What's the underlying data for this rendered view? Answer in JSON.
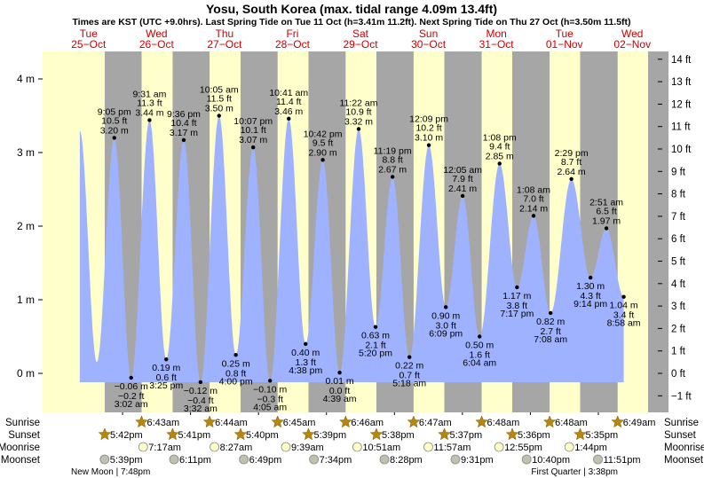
{
  "chart_data": {
    "type": "area",
    "title": "Yosu, South Korea (max. tidal range 4.09m 13.4ft)",
    "subtitle": "Times are KST (UTC +9.0hrs). Last Spring Tide on Tue 11 Oct (h=3.41m 11.2ft). Next Spring Tide on Thu 27 Oct (h=3.50m 11.5ft)",
    "ylabel_left": "m",
    "ylabel_right": "ft",
    "ylim_m": [
      -0.45,
      4.4
    ],
    "left_ticks": [
      "0 m",
      "1 m",
      "2 m",
      "3 m",
      "4 m"
    ],
    "right_ticks": [
      "−1 ft",
      "0 ft",
      "1 ft",
      "2 ft",
      "3 ft",
      "4 ft",
      "5 ft",
      "6 ft",
      "7 ft",
      "8 ft",
      "9 ft",
      "10 ft",
      "11 ft",
      "12 ft",
      "13 ft",
      "14 ft"
    ],
    "days": [
      {
        "dow": "Tue",
        "date": "25−Oct"
      },
      {
        "dow": "Wed",
        "date": "26−Oct"
      },
      {
        "dow": "Thu",
        "date": "27−Oct"
      },
      {
        "dow": "Fri",
        "date": "28−Oct"
      },
      {
        "dow": "Sat",
        "date": "29−Oct"
      },
      {
        "dow": "Sun",
        "date": "30−Oct"
      },
      {
        "dow": "Mon",
        "date": "31−Oct"
      },
      {
        "dow": "Tue",
        "date": "01−Nov"
      },
      {
        "dow": "Wed",
        "date": "02−Nov"
      }
    ],
    "curve_start": [
      {
        "t": 8.9,
        "m": 3.3
      },
      {
        "t": 14.9,
        "m": 0.15
      }
    ],
    "tides": [
      {
        "t": 21.08,
        "type": "high",
        "time": "9:05 pm",
        "ft": "10.5 ft",
        "m": 3.2,
        "m_label": "3.20 m"
      },
      {
        "t": 27.03,
        "type": "low",
        "time": "3:02 am",
        "ft": "−0.2 ft",
        "m": -0.06,
        "m_label": "−0.06 m"
      },
      {
        "t": 33.52,
        "type": "high",
        "time": "9:31 am",
        "ft": "11.3 ft",
        "m": 3.44,
        "m_label": "3.44 m"
      },
      {
        "t": 39.42,
        "type": "low",
        "time": "3:25 pm",
        "ft": "0.6 ft",
        "m": 0.19,
        "m_label": "0.19 m"
      },
      {
        "t": 45.6,
        "type": "high",
        "time": "9:36 pm",
        "ft": "10.4 ft",
        "m": 3.17,
        "m_label": "3.17 m"
      },
      {
        "t": 51.53,
        "type": "low",
        "time": "3:32 am",
        "ft": "−0.4 ft",
        "m": -0.12,
        "m_label": "−0.12 m"
      },
      {
        "t": 58.08,
        "type": "high",
        "time": "10:05 am",
        "ft": "11.5 ft",
        "m": 3.5,
        "m_label": "3.50 m"
      },
      {
        "t": 64.0,
        "type": "low",
        "time": "4:00 pm",
        "ft": "0.8 ft",
        "m": 0.25,
        "m_label": "0.25 m"
      },
      {
        "t": 70.12,
        "type": "high",
        "time": "10:07 pm",
        "ft": "10.1 ft",
        "m": 3.07,
        "m_label": "3.07 m"
      },
      {
        "t": 76.08,
        "type": "low",
        "time": "4:05 am",
        "ft": "−0.3 ft",
        "m": -0.1,
        "m_label": "−0.10 m"
      },
      {
        "t": 82.68,
        "type": "high",
        "time": "10:41 am",
        "ft": "11.4 ft",
        "m": 3.46,
        "m_label": "3.46 m"
      },
      {
        "t": 88.63,
        "type": "low",
        "time": "4:38 pm",
        "ft": "1.3 ft",
        "m": 0.4,
        "m_label": "0.40 m"
      },
      {
        "t": 94.7,
        "type": "high",
        "time": "10:42 pm",
        "ft": "9.5 ft",
        "m": 2.9,
        "m_label": "2.90 m"
      },
      {
        "t": 100.65,
        "type": "low",
        "time": "4:39 am",
        "ft": "0.0 ft",
        "m": 0.01,
        "m_label": "0.01 m"
      },
      {
        "t": 107.37,
        "type": "high",
        "time": "11:22 am",
        "ft": "10.9 ft",
        "m": 3.32,
        "m_label": "3.32 m"
      },
      {
        "t": 113.33,
        "type": "low",
        "time": "5:20 pm",
        "ft": "2.1 ft",
        "m": 0.63,
        "m_label": "0.63 m"
      },
      {
        "t": 119.32,
        "type": "high",
        "time": "11:19 pm",
        "ft": "8.8 ft",
        "m": 2.67,
        "m_label": "2.67 m"
      },
      {
        "t": 125.3,
        "type": "low",
        "time": "5:18 am",
        "ft": "0.7 ft",
        "m": 0.22,
        "m_label": "0.22 m"
      },
      {
        "t": 132.15,
        "type": "high",
        "time": "12:09 pm",
        "ft": "10.2 ft",
        "m": 3.1,
        "m_label": "3.10 m"
      },
      {
        "t": 138.15,
        "type": "low",
        "time": "6:09 pm",
        "ft": "3.0 ft",
        "m": 0.9,
        "m_label": "0.90 m"
      },
      {
        "t": 144.08,
        "type": "high",
        "time": "12:05 am",
        "ft": "7.9 ft",
        "m": 2.41,
        "m_label": "2.41 m"
      },
      {
        "t": 150.07,
        "type": "low",
        "time": "6:04 am",
        "ft": "1.6 ft",
        "m": 0.5,
        "m_label": "0.50 m"
      },
      {
        "t": 157.13,
        "type": "high",
        "time": "1:08 pm",
        "ft": "9.4 ft",
        "m": 2.85,
        "m_label": "2.85 m"
      },
      {
        "t": 163.28,
        "type": "low",
        "time": "7:17 pm",
        "ft": "3.8 ft",
        "m": 1.17,
        "m_label": "1.17 m"
      },
      {
        "t": 169.13,
        "type": "high",
        "time": "1:08 am",
        "ft": "7.0 ft",
        "m": 2.14,
        "m_label": "2.14 m"
      },
      {
        "t": 175.13,
        "type": "low",
        "time": "7:08 am",
        "ft": "2.7 ft",
        "m": 0.82,
        "m_label": "0.82 m"
      },
      {
        "t": 182.48,
        "type": "high",
        "time": "2:29 pm",
        "ft": "8.7 ft",
        "m": 2.64,
        "m_label": "2.64 m"
      },
      {
        "t": 189.23,
        "type": "low",
        "time": "9:14 pm",
        "ft": "4.3 ft",
        "m": 1.3,
        "m_label": "1.30 m"
      },
      {
        "t": 194.85,
        "type": "high",
        "time": "2:51 am",
        "ft": "6.5 ft",
        "m": 1.97,
        "m_label": "1.97 m"
      },
      {
        "t": 200.97,
        "type": "low",
        "time": "8:58 am",
        "ft": "3.4 ft",
        "m": 1.04,
        "m_label": "1.04 m"
      }
    ],
    "rows": {
      "sunrise": {
        "label": "Sunrise",
        "items": [
          {
            "t": 30.72,
            "text": "6:43am"
          },
          {
            "t": 54.73,
            "text": "6:44am"
          },
          {
            "t": 78.75,
            "text": "6:45am"
          },
          {
            "t": 102.77,
            "text": "6:46am"
          },
          {
            "t": 126.78,
            "text": "6:47am"
          },
          {
            "t": 150.8,
            "text": "6:48am"
          },
          {
            "t": 174.8,
            "text": "6:48am"
          },
          {
            "t": 198.82,
            "text": "6:49am"
          }
        ]
      },
      "sunset": {
        "label": "Sunset",
        "items": [
          {
            "t": 17.7,
            "text": "5:42pm"
          },
          {
            "t": 41.68,
            "text": "5:41pm"
          },
          {
            "t": 65.67,
            "text": "5:40pm"
          },
          {
            "t": 89.65,
            "text": "5:39pm"
          },
          {
            "t": 113.63,
            "text": "5:38pm"
          },
          {
            "t": 137.62,
            "text": "5:37pm"
          },
          {
            "t": 161.6,
            "text": "5:36pm"
          },
          {
            "t": 185.58,
            "text": "5:35pm"
          }
        ]
      },
      "moonrise": {
        "label": "Moonrise",
        "items": [
          {
            "t": 31.28,
            "text": "7:17am"
          },
          {
            "t": 56.45,
            "text": "8:27am"
          },
          {
            "t": 81.65,
            "text": "9:39am"
          },
          {
            "t": 106.85,
            "text": "10:51am"
          },
          {
            "t": 131.95,
            "text": "11:57am"
          },
          {
            "t": 156.92,
            "text": "12:55pm"
          },
          {
            "t": 181.73,
            "text": "1:44pm"
          }
        ]
      },
      "moonset": {
        "label": "Moonset",
        "items": [
          {
            "t": 17.65,
            "text": "5:39pm"
          },
          {
            "t": 42.18,
            "text": "6:11pm"
          },
          {
            "t": 66.82,
            "text": "6:49pm"
          },
          {
            "t": 91.57,
            "text": "7:34pm"
          },
          {
            "t": 116.47,
            "text": "8:28pm"
          },
          {
            "t": 141.52,
            "text": "9:31pm"
          },
          {
            "t": 166.67,
            "text": "10:40pm"
          },
          {
            "t": 191.85,
            "text": "11:51pm"
          }
        ]
      }
    },
    "moon_phases": [
      {
        "t": 19.8,
        "text": "New Moon | 7:48pm"
      },
      {
        "t": 183.6,
        "text": "First Quarter | 3:38pm"
      }
    ],
    "colors": {
      "day": "#ffffcc",
      "night": "#a6a6a6",
      "water": "#9fb2ff",
      "day_label": "#cc0000",
      "sun_icon": "#b8860b",
      "moonrise_icon": "#ffffc8",
      "moonset_icon": "#c0c0b0"
    }
  }
}
